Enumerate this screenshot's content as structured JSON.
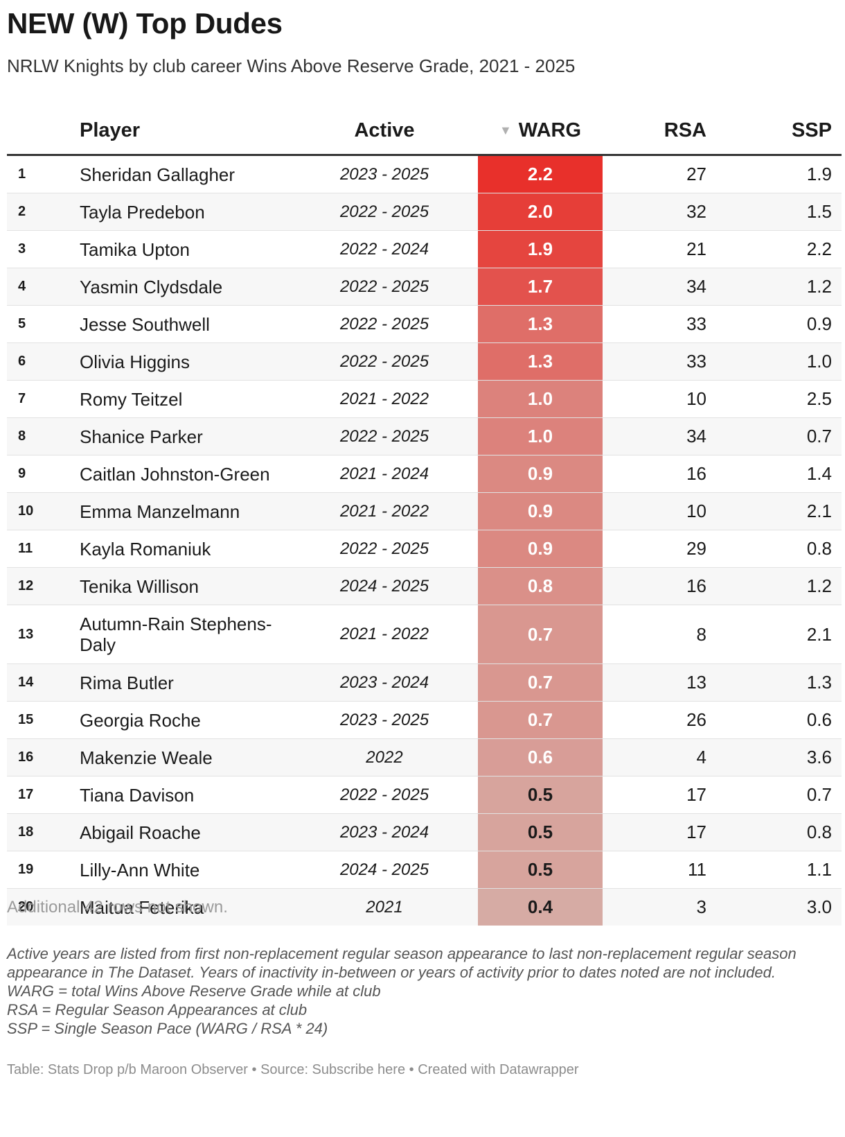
{
  "title": "NEW (W) Top Dudes",
  "subtitle": "NRLW Knights by club career Wins Above Reserve Grade, 2021 - 2025",
  "columns": {
    "rank": "",
    "player": "Player",
    "active": "Active",
    "warg": "WARG",
    "rsa": "RSA",
    "ssp": "SSP"
  },
  "sort_indicator": "▼",
  "colors": {
    "warg_high": "#e8302b",
    "warg_low": "#d6aba4",
    "warg_text_light": "#ffffff",
    "warg_text_dark": "#1a1a1a"
  },
  "chart_data": {
    "type": "table",
    "sorted_by": "WARG",
    "sort_order": "descending",
    "rows": [
      {
        "rank": "1",
        "player": "Sheridan Gallagher",
        "active": "2023 - 2025",
        "warg": "2.2",
        "rsa": "27",
        "ssp": "1.9"
      },
      {
        "rank": "2",
        "player": "Tayla Predebon",
        "active": "2022 - 2025",
        "warg": "2.0",
        "rsa": "32",
        "ssp": "1.5"
      },
      {
        "rank": "3",
        "player": "Tamika Upton",
        "active": "2022 - 2024",
        "warg": "1.9",
        "rsa": "21",
        "ssp": "2.2"
      },
      {
        "rank": "4",
        "player": "Yasmin Clydsdale",
        "active": "2022 - 2025",
        "warg": "1.7",
        "rsa": "34",
        "ssp": "1.2"
      },
      {
        "rank": "5",
        "player": "Jesse Southwell",
        "active": "2022 - 2025",
        "warg": "1.3",
        "rsa": "33",
        "ssp": "0.9"
      },
      {
        "rank": "6",
        "player": "Olivia Higgins",
        "active": "2022 - 2025",
        "warg": "1.3",
        "rsa": "33",
        "ssp": "1.0"
      },
      {
        "rank": "7",
        "player": "Romy Teitzel",
        "active": "2021 - 2022",
        "warg": "1.0",
        "rsa": "10",
        "ssp": "2.5"
      },
      {
        "rank": "8",
        "player": "Shanice Parker",
        "active": "2022 - 2025",
        "warg": "1.0",
        "rsa": "34",
        "ssp": "0.7"
      },
      {
        "rank": "9",
        "player": "Caitlan Johnston-Green",
        "active": "2021 - 2024",
        "warg": "0.9",
        "rsa": "16",
        "ssp": "1.4"
      },
      {
        "rank": "10",
        "player": "Emma Manzelmann",
        "active": "2021 - 2022",
        "warg": "0.9",
        "rsa": "10",
        "ssp": "2.1"
      },
      {
        "rank": "11",
        "player": "Kayla Romaniuk",
        "active": "2022 - 2025",
        "warg": "0.9",
        "rsa": "29",
        "ssp": "0.8"
      },
      {
        "rank": "12",
        "player": "Tenika Willison",
        "active": "2024 - 2025",
        "warg": "0.8",
        "rsa": "16",
        "ssp": "1.2"
      },
      {
        "rank": "13",
        "player": "Autumn-Rain Stephens-Daly",
        "active": "2021 - 2022",
        "warg": "0.7",
        "rsa": "8",
        "ssp": "2.1"
      },
      {
        "rank": "14",
        "player": "Rima Butler",
        "active": "2023 - 2024",
        "warg": "0.7",
        "rsa": "13",
        "ssp": "1.3"
      },
      {
        "rank": "15",
        "player": "Georgia Roche",
        "active": "2023 - 2025",
        "warg": "0.7",
        "rsa": "26",
        "ssp": "0.6"
      },
      {
        "rank": "16",
        "player": "Makenzie Weale",
        "active": "2022",
        "warg": "0.6",
        "rsa": "4",
        "ssp": "3.6"
      },
      {
        "rank": "17",
        "player": "Tiana Davison",
        "active": "2022 - 2025",
        "warg": "0.5",
        "rsa": "17",
        "ssp": "0.7"
      },
      {
        "rank": "18",
        "player": "Abigail Roache",
        "active": "2023 - 2024",
        "warg": "0.5",
        "rsa": "17",
        "ssp": "0.8"
      },
      {
        "rank": "19",
        "player": "Lilly-Ann White",
        "active": "2024 - 2025",
        "warg": "0.5",
        "rsa": "11",
        "ssp": "1.1"
      },
      {
        "rank": "20",
        "player": "Maitua Feterika",
        "active": "2021",
        "warg": "0.4",
        "rsa": "3",
        "ssp": "3.0"
      }
    ]
  },
  "rows_not_shown": "Additional 42 rows not shown.",
  "notes": [
    "Active years are listed from first non-replacement regular season appearance to last non-replacement regular season appearance in The Dataset. Years of inactivity in-between or years of activity prior to dates noted are not included.",
    "WARG = total Wins Above Reserve Grade while at club",
    "RSA = Regular Season Appearances at club",
    "SSP = Single Season Pace (WARG / RSA * 24)"
  ],
  "footer": {
    "table_credit": "Table: Stats Drop p/b Maroon Observer",
    "separator": " • ",
    "source": "Source: Subscribe here",
    "created_with": "Created with Datawrapper"
  }
}
